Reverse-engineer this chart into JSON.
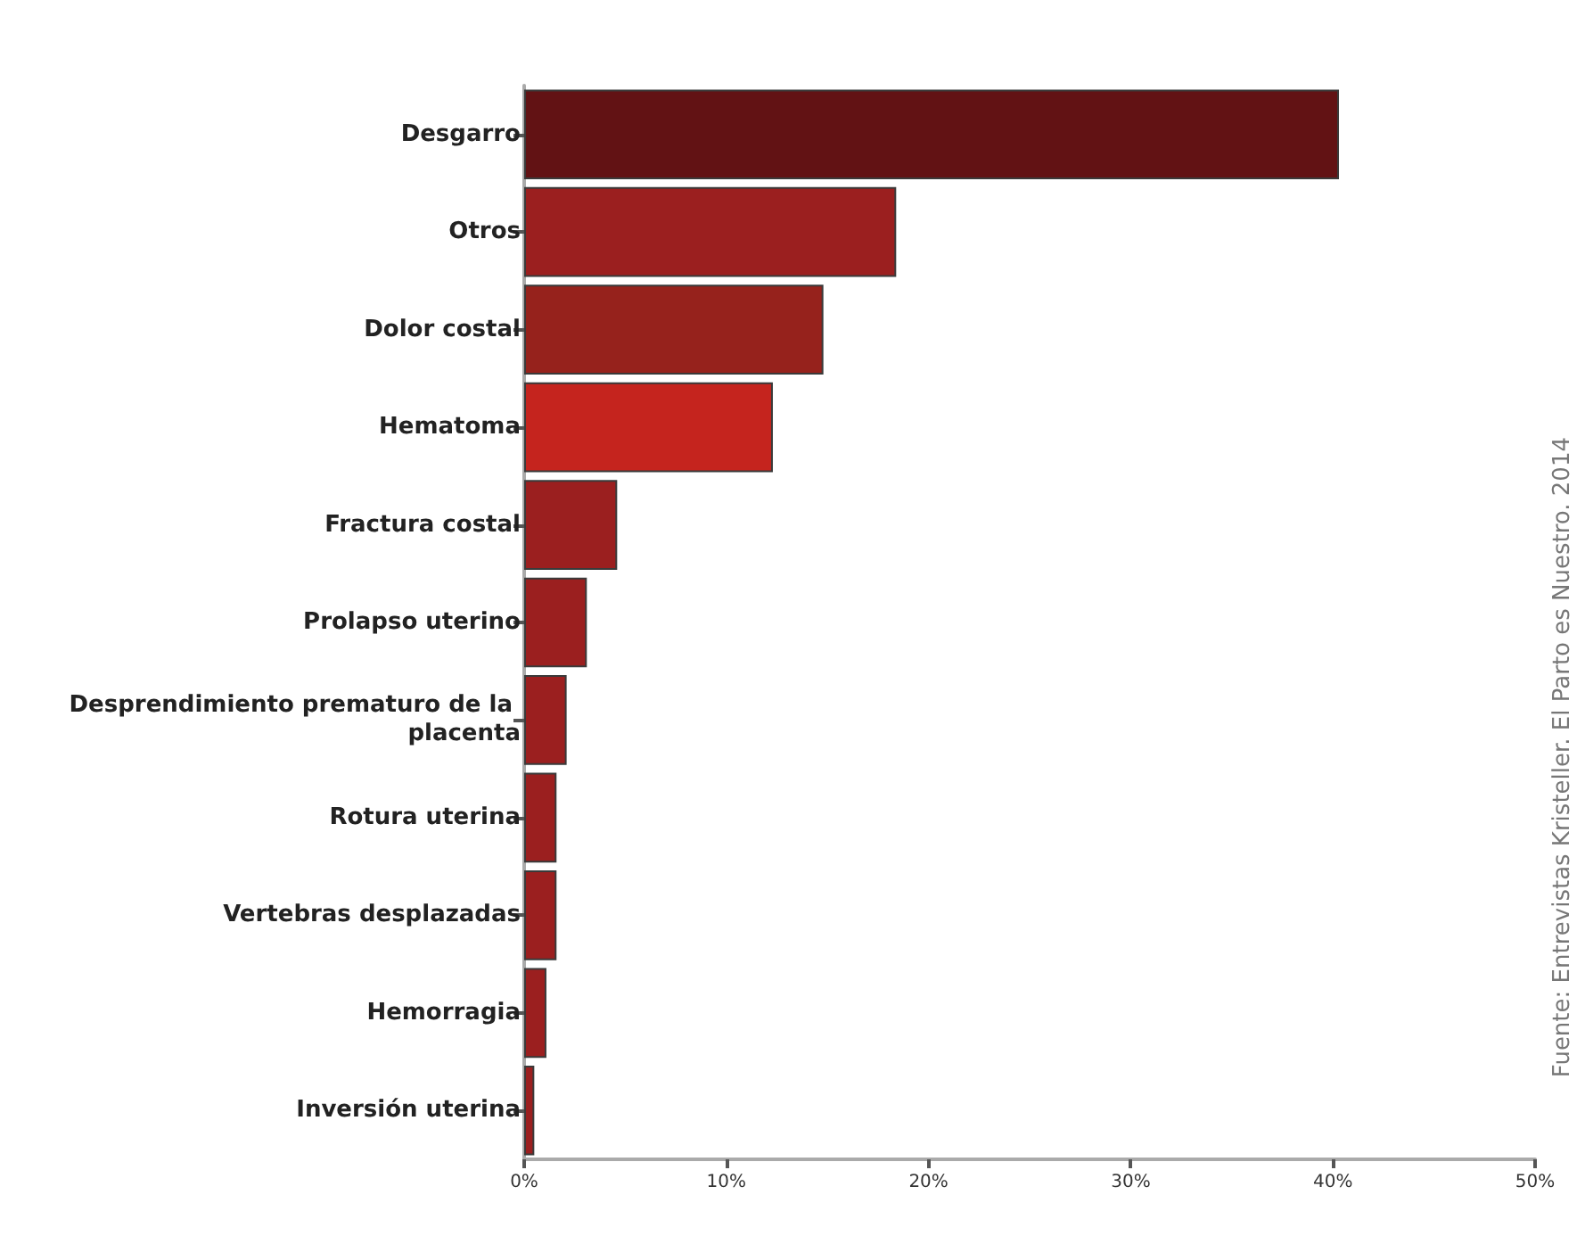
{
  "chart_data": {
    "type": "bar",
    "orientation": "horizontal",
    "categories": [
      "Desgarro",
      "Otros",
      "Dolor costal",
      "Hematoma",
      "Fractura costal",
      "Prolapso uterino",
      "Desprendimiento prematuro de la placenta",
      "Rotura uterina",
      "Vertebras desplazadas",
      "Hemorragia",
      "Inversión uterina"
    ],
    "values": [
      40.3,
      18.4,
      14.8,
      12.3,
      4.6,
      3.1,
      2.1,
      1.6,
      1.6,
      1.1,
      0.5
    ],
    "colors": [
      "#621214",
      "#9b1f1f",
      "#96221c",
      "#c5241e",
      "#9b1f1f",
      "#9b1f1f",
      "#9b1f1f",
      "#9b1f1f",
      "#9b1f1f",
      "#9b1f1f",
      "#9b1f1f"
    ],
    "xlim": [
      0,
      50
    ],
    "xticks": [
      {
        "value": 0,
        "label": "0%"
      },
      {
        "value": 10,
        "label": "10%"
      },
      {
        "value": 20,
        "label": "20%"
      },
      {
        "value": 30,
        "label": "30%"
      },
      {
        "value": 40,
        "label": "40%"
      },
      {
        "value": 50,
        "label": "50%"
      }
    ],
    "grid": false,
    "annotations": [
      "Fuente: Entrevistas Kristeller. El Parto es Nuestro. 2014"
    ]
  }
}
